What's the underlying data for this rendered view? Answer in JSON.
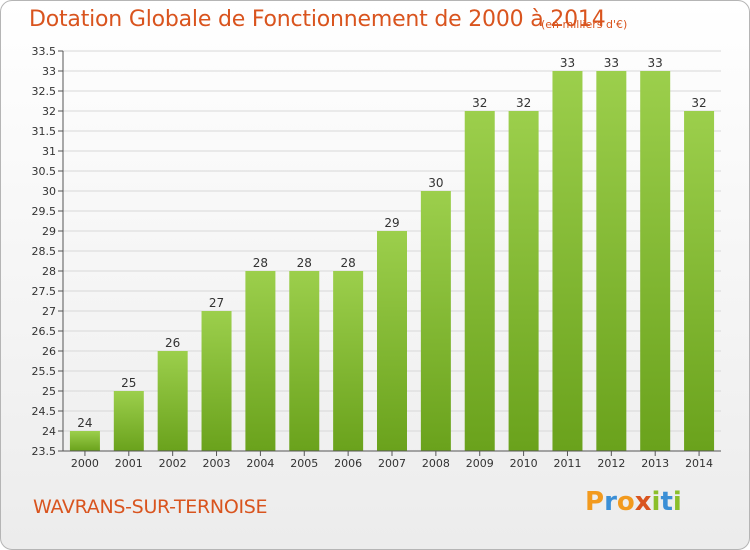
{
  "header": {
    "title": "Dotation Globale de Fonctionnement de 2000 à 2014",
    "subtitle": "(en milliers d'€)"
  },
  "footer": {
    "commune": "WAVRANS-SUR-TERNOISE",
    "logo": [
      "P",
      "r",
      "o",
      "x",
      "i",
      "t",
      "i"
    ]
  },
  "colors": {
    "bar_top": "#9ccf4c",
    "bar_bottom": "#6aa21c",
    "grid": "#d8d8d8",
    "axis_text": "#333333",
    "accent": "#d9541e"
  },
  "chart_data": {
    "type": "bar",
    "title": "Dotation Globale de Fonctionnement de 2000 à 2014",
    "subtitle": "(en milliers d'€)",
    "xlabel": "",
    "ylabel": "",
    "categories": [
      "2000",
      "2001",
      "2002",
      "2003",
      "2004",
      "2005",
      "2006",
      "2007",
      "2008",
      "2009",
      "2010",
      "2011",
      "2012",
      "2013",
      "2014"
    ],
    "values": [
      24,
      25,
      26,
      27,
      28,
      28,
      28,
      29,
      30,
      32,
      32,
      33,
      33,
      33,
      32
    ],
    "ylim": [
      23.5,
      33.5
    ],
    "yticks": [
      "23.5",
      "24",
      "24.5",
      "25",
      "25.5",
      "26",
      "26.5",
      "27",
      "27.5",
      "28",
      "28.5",
      "29",
      "29.5",
      "30",
      "30.5",
      "31",
      "31.5",
      "32",
      "32.5",
      "33",
      "33.5"
    ],
    "grid": true
  }
}
